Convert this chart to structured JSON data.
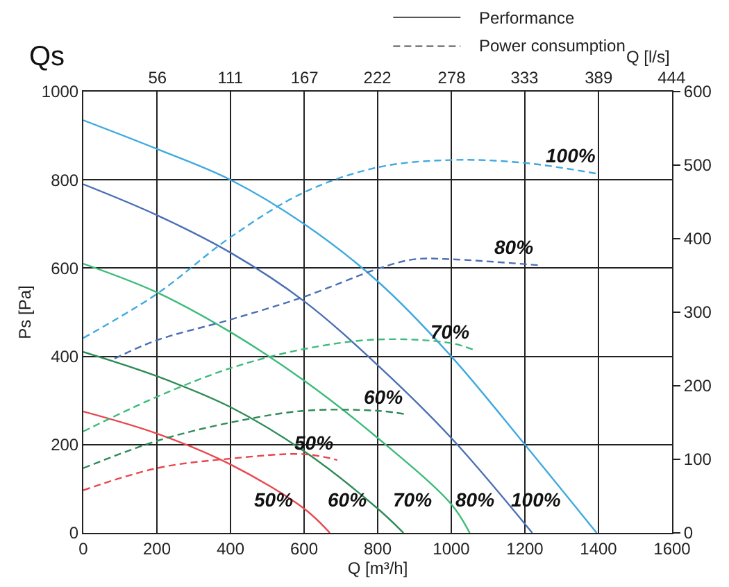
{
  "chart_data": {
    "type": "line",
    "title": "Qs",
    "xlabel": "Q [m³/h]",
    "ylabel": "Ps [Pa]",
    "x2label": "Q [l/s]",
    "xlim": [
      0,
      1600
    ],
    "xticks": [
      0,
      200,
      400,
      600,
      800,
      1000,
      1200,
      1400,
      1600
    ],
    "x2lim": [
      0,
      444.4
    ],
    "x2ticks": [
      56,
      111,
      167,
      222,
      278,
      333,
      389,
      444
    ],
    "ylim": [
      0,
      1000
    ],
    "yticks": [
      200,
      400,
      600,
      800,
      1000,
      {
        "value": 0,
        "label": "0"
      }
    ],
    "y2lim": [
      0,
      600
    ],
    "y2ticks": [
      0,
      100,
      200,
      300,
      400,
      500,
      600
    ],
    "grid": true,
    "marker": "none",
    "series": [
      {
        "color": "#3fa9e0",
        "line_style": "solid",
        "x": [
          0,
          200,
          400,
          600,
          800,
          1000,
          1200,
          1395
        ],
        "values": [
          935,
          870,
          800,
          700,
          570,
          400,
          200,
          0
        ]
      },
      {
        "color": "#4a6fb5",
        "line_style": "solid",
        "x": [
          0,
          200,
          400,
          600,
          800,
          1000,
          1220
        ],
        "values": [
          790,
          720,
          635,
          525,
          380,
          215,
          0
        ]
      },
      {
        "color": "#3dbb7a",
        "line_style": "solid",
        "x": [
          0,
          200,
          400,
          600,
          800,
          1000,
          1050
        ],
        "values": [
          610,
          545,
          455,
          345,
          215,
          65,
          0
        ]
      },
      {
        "color": "#2e8b57",
        "line_style": "solid",
        "x": [
          0,
          200,
          400,
          600,
          800,
          870
        ],
        "values": [
          410,
          355,
          285,
          185,
          55,
          0
        ]
      },
      {
        "color": "#e8474f",
        "line_style": "solid",
        "x": [
          0,
          200,
          400,
          600,
          670
        ],
        "values": [
          275,
          225,
          155,
          55,
          0
        ]
      },
      {
        "color": "#3fa9e0",
        "line_style": "dashed",
        "axis": "y2",
        "x": [
          0,
          200,
          400,
          600,
          800,
          1000,
          1200,
          1400
        ],
        "values": [
          265,
          325,
          402,
          463,
          497,
          507,
          503,
          488
        ]
      },
      {
        "color": "#4a6fb5",
        "line_style": "dashed",
        "axis": "y2",
        "x": [
          85,
          200,
          400,
          600,
          800,
          900,
          1000,
          1235
        ],
        "values": [
          237,
          262,
          290,
          321,
          359,
          372,
          372,
          364
        ]
      },
      {
        "color": "#3dbb7a",
        "line_style": "dashed",
        "axis": "y2",
        "x": [
          0,
          200,
          400,
          600,
          800,
          1000,
          1060
        ],
        "values": [
          138,
          185,
          224,
          250,
          263,
          258,
          249
        ]
      },
      {
        "color": "#2e8b57",
        "line_style": "dashed",
        "axis": "y2",
        "x": [
          0,
          200,
          400,
          600,
          800,
          880
        ],
        "values": [
          88,
          125,
          150,
          166,
          166,
          161
        ]
      },
      {
        "color": "#e8474f",
        "line_style": "dashed",
        "axis": "y2",
        "x": [
          0,
          200,
          400,
          600,
          690
        ],
        "values": [
          58,
          88,
          101,
          107,
          99
        ]
      }
    ],
    "annotations": [
      "Performance",
      "Power consumption",
      "100%",
      "80%",
      "70%",
      "60%",
      "50%",
      "50%",
      "60%",
      "70%",
      "80%",
      "100%"
    ]
  }
}
